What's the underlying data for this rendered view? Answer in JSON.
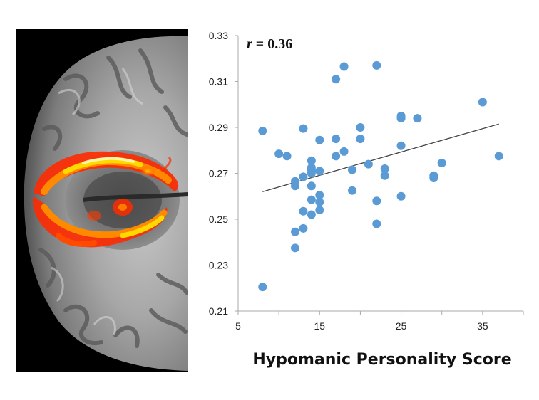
{
  "figure": {
    "image_alt": "Axial brain MRI slice with thermal overlay on white matter"
  },
  "colors": {
    "point": "#5b9bd5",
    "trend": "#333333",
    "axis": "#aaaaaa",
    "overlay_hot": [
      "#ff1f00",
      "#ff7a00",
      "#ffd900",
      "#fff6a0"
    ]
  },
  "chart_data": {
    "type": "scatter",
    "title": "",
    "xlabel": "Hypomanic Personality Score",
    "ylabel": "",
    "annotation": {
      "prefix": "r",
      "suffix": " = 0.36"
    },
    "xlim": [
      5,
      40
    ],
    "ylim": [
      0.21,
      0.33
    ],
    "xticks": [
      "5",
      "15",
      "25",
      "35"
    ],
    "xtick_values": [
      5,
      15,
      25,
      35
    ],
    "yticks": [
      "0.21",
      "0.23",
      "0.25",
      "0.27",
      "0.29",
      "0.31",
      "0.33"
    ],
    "ytick_values": [
      0.21,
      0.23,
      0.25,
      0.27,
      0.29,
      0.31,
      0.33
    ],
    "grid": false,
    "trendline": {
      "x": [
        8,
        37
      ],
      "y": [
        0.262,
        0.2915
      ]
    },
    "series": [
      {
        "points": [
          [
            8,
            0.2885
          ],
          [
            8,
            0.2205
          ],
          [
            10,
            0.2785
          ],
          [
            11,
            0.2775
          ],
          [
            12,
            0.2665
          ],
          [
            12,
            0.2645
          ],
          [
            12,
            0.2445
          ],
          [
            12,
            0.2375
          ],
          [
            13,
            0.2895
          ],
          [
            13,
            0.2685
          ],
          [
            13,
            0.2535
          ],
          [
            13,
            0.246
          ],
          [
            14,
            0.2755
          ],
          [
            14,
            0.2725
          ],
          [
            14,
            0.2715
          ],
          [
            14,
            0.27
          ],
          [
            14,
            0.2645
          ],
          [
            14,
            0.2585
          ],
          [
            14,
            0.252
          ],
          [
            15,
            0.2845
          ],
          [
            15,
            0.271
          ],
          [
            15,
            0.2605
          ],
          [
            15,
            0.2575
          ],
          [
            15,
            0.254
          ],
          [
            17,
            0.311
          ],
          [
            17,
            0.285
          ],
          [
            17,
            0.2775
          ],
          [
            18,
            0.3165
          ],
          [
            18,
            0.2795
          ],
          [
            19,
            0.2715
          ],
          [
            19,
            0.2625
          ],
          [
            20,
            0.29
          ],
          [
            20,
            0.285
          ],
          [
            21,
            0.274
          ],
          [
            22,
            0.317
          ],
          [
            22,
            0.258
          ],
          [
            22,
            0.248
          ],
          [
            23,
            0.272
          ],
          [
            23,
            0.269
          ],
          [
            25,
            0.295
          ],
          [
            25,
            0.294
          ],
          [
            25,
            0.282
          ],
          [
            25,
            0.26
          ],
          [
            27,
            0.294
          ],
          [
            29,
            0.269
          ],
          [
            29,
            0.268
          ],
          [
            30,
            0.2745
          ],
          [
            35,
            0.301
          ],
          [
            37,
            0.2775
          ]
        ]
      }
    ]
  }
}
